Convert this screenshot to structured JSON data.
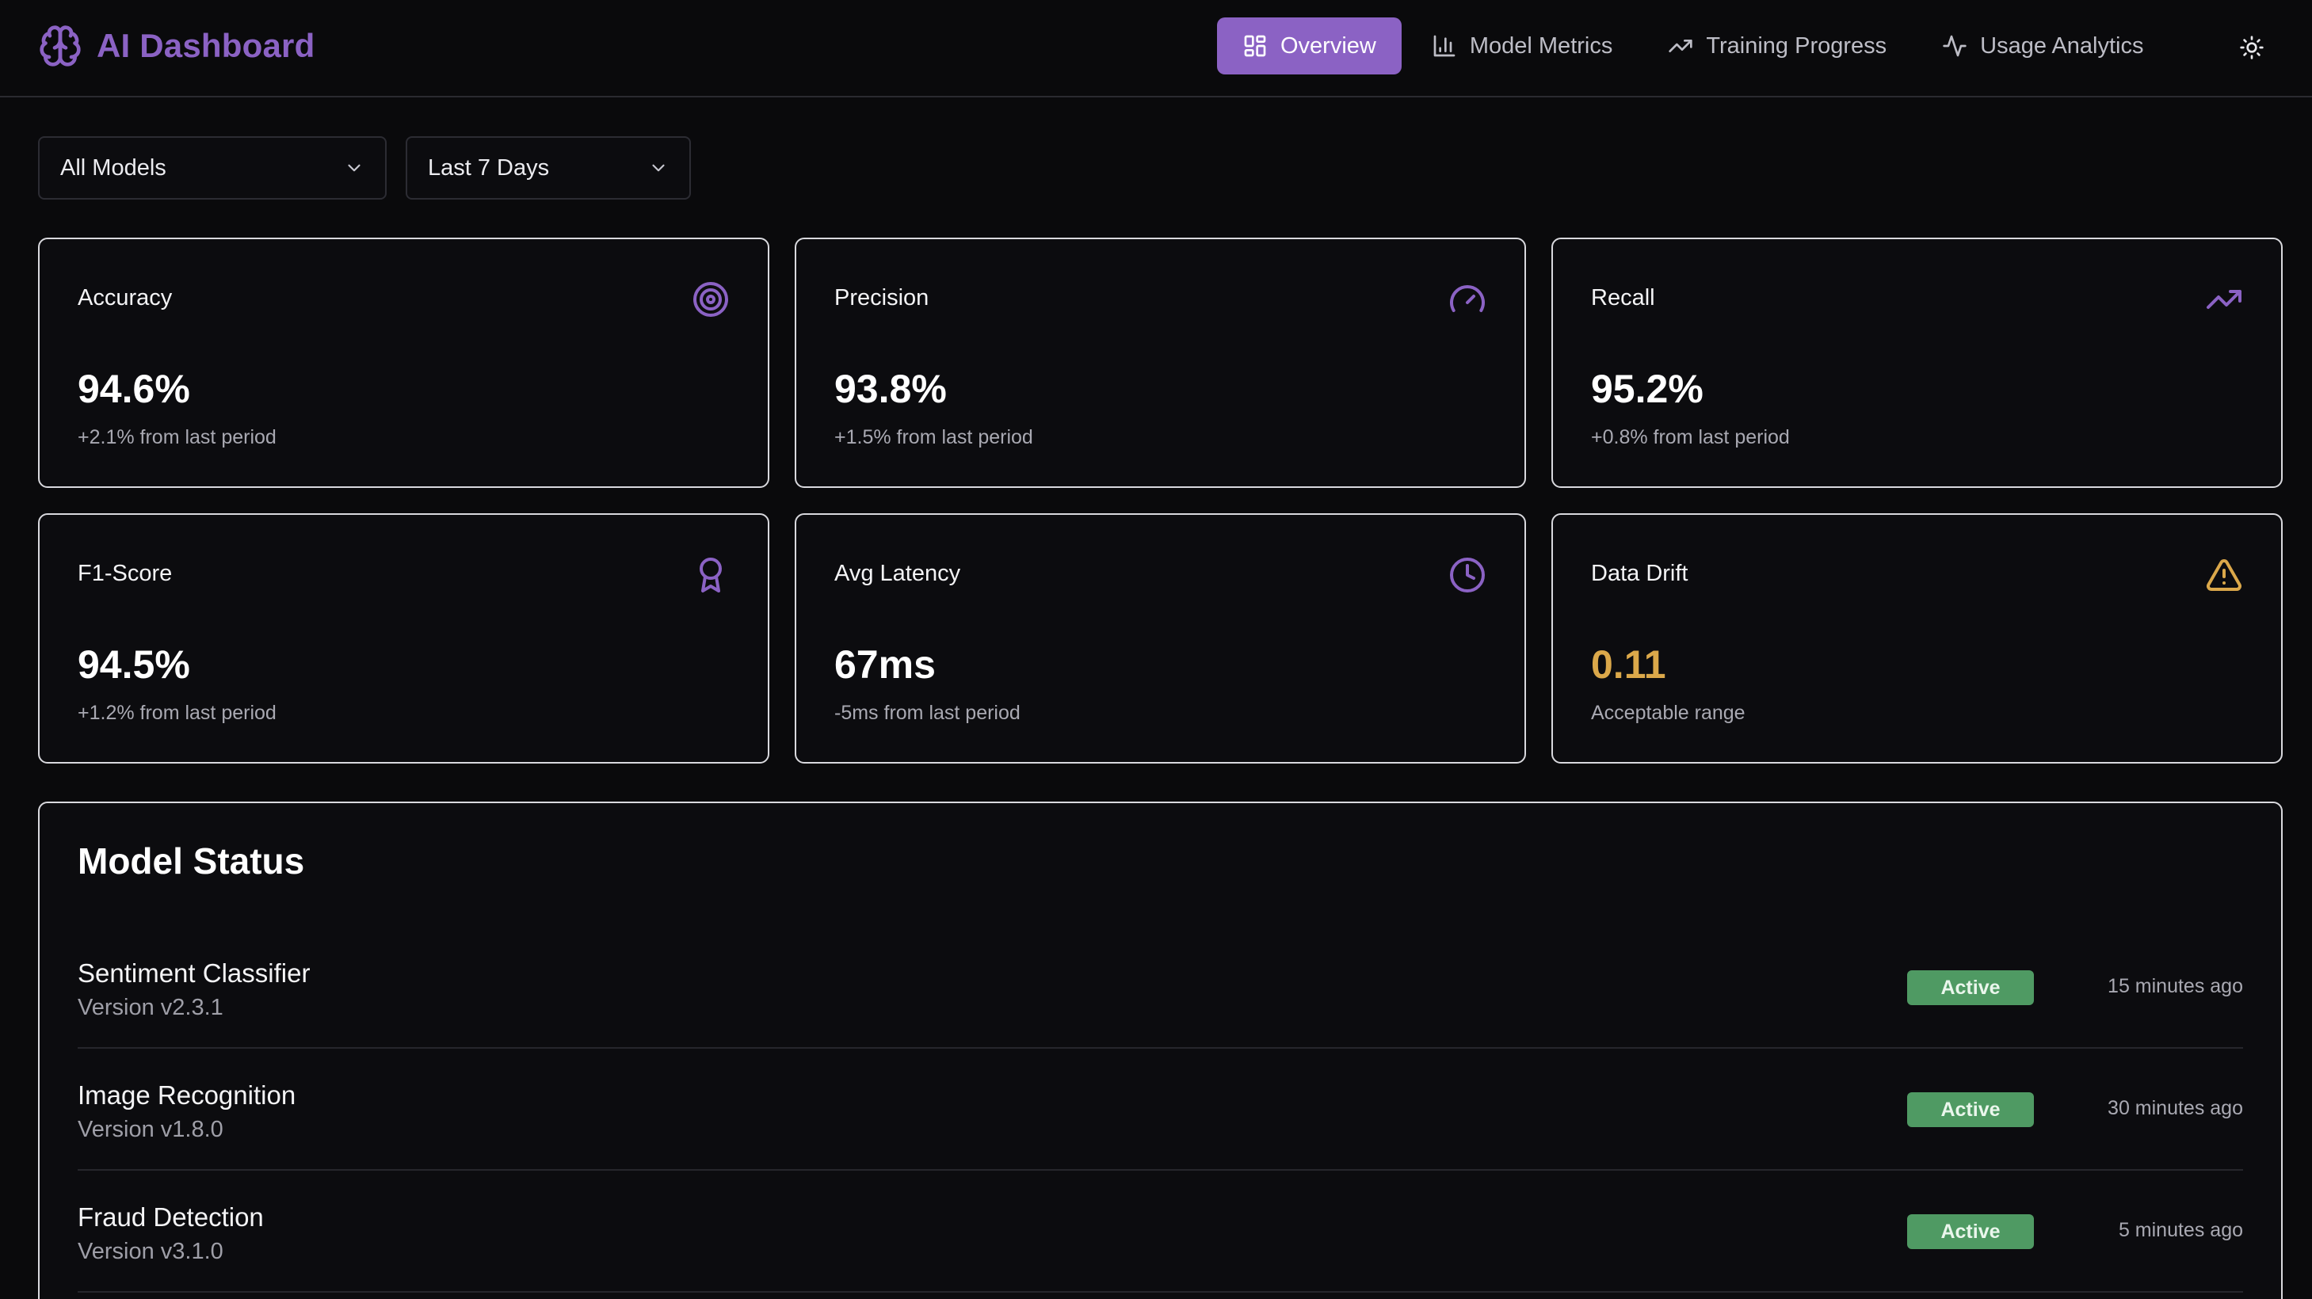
{
  "header": {
    "title": "AI Dashboard",
    "logo_icon": "brain-icon",
    "nav": [
      {
        "label": "Overview",
        "icon": "grid-icon",
        "active": true
      },
      {
        "label": "Model Metrics",
        "icon": "bar-chart-icon",
        "active": false
      },
      {
        "label": "Training Progress",
        "icon": "trending-up-icon",
        "active": false
      },
      {
        "label": "Usage Analytics",
        "icon": "activity-icon",
        "active": false
      }
    ],
    "theme_icon": "sun-icon"
  },
  "filters": {
    "model": "All Models",
    "range": "Last 7 Days"
  },
  "metrics": [
    {
      "label": "Accuracy",
      "value": "94.6%",
      "note": "+2.1% from last period",
      "icon": "target-icon"
    },
    {
      "label": "Precision",
      "value": "93.8%",
      "note": "+1.5% from last period",
      "icon": "gauge-icon"
    },
    {
      "label": "Recall",
      "value": "95.2%",
      "note": "+0.8% from last period",
      "icon": "trending-up-icon"
    },
    {
      "label": "F1-Score",
      "value": "94.5%",
      "note": "+1.2% from last period",
      "icon": "award-icon"
    },
    {
      "label": "Avg Latency",
      "value": "67ms",
      "note": "-5ms from last period",
      "icon": "clock-icon"
    },
    {
      "label": "Data Drift",
      "value": "0.11",
      "note": "Acceptable range",
      "icon": "warning-icon"
    }
  ],
  "model_status": {
    "title": "Model Status",
    "models": [
      {
        "name": "Sentiment Classifier",
        "version": "Version v2.3.1",
        "status": "Active",
        "updated": "15 minutes ago"
      },
      {
        "name": "Image Recognition",
        "version": "Version v1.8.0",
        "status": "Active",
        "updated": "30 minutes ago"
      },
      {
        "name": "Fraud Detection",
        "version": "Version v3.1.0",
        "status": "Active",
        "updated": "5 minutes ago"
      }
    ]
  },
  "colors": {
    "accent": "#8b62c4",
    "background": "#0a0a0c",
    "active_badge": "#4f9a63",
    "warning": "#dba84a"
  }
}
